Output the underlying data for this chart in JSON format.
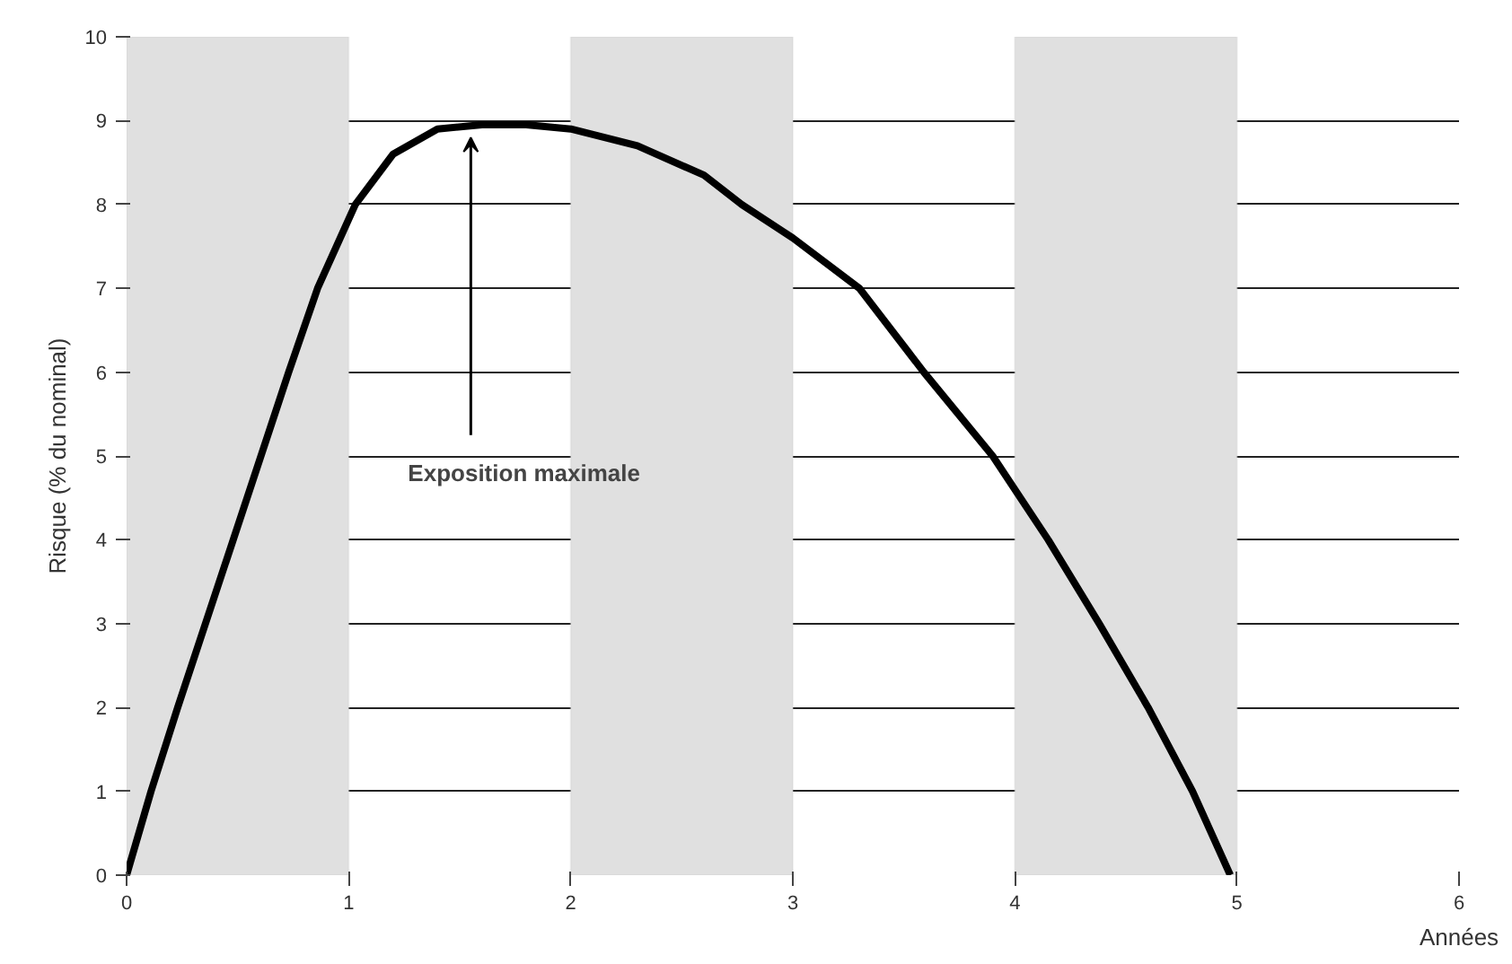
{
  "chart_data": {
    "type": "line",
    "xlabel": "Années",
    "ylabel": "Risque (% du nominal)",
    "x": [
      0,
      0.11,
      0.23,
      0.48,
      0.73,
      0.86,
      1.03,
      1.2,
      1.4,
      1.6,
      1.8,
      2.0,
      2.3,
      2.6,
      2.77,
      3.0,
      3.3,
      3.59,
      3.9,
      4.15,
      4.38,
      4.6,
      4.8,
      4.97
    ],
    "series": [
      {
        "color": "#000000",
        "values": [
          0,
          1,
          2,
          4,
          6,
          7,
          8,
          8.6,
          8.9,
          8.95,
          8.95,
          8.9,
          8.7,
          8.35,
          8,
          7.6,
          7,
          6,
          5,
          4,
          3,
          2,
          1,
          0
        ]
      }
    ],
    "xlim": [
      0,
      6
    ],
    "ylim": [
      0,
      10
    ],
    "xticks": [
      0,
      1,
      2,
      3,
      4,
      5,
      6
    ],
    "yticks": [
      0,
      1,
      2,
      3,
      4,
      5,
      6,
      7,
      8,
      9,
      10
    ],
    "grid": "y",
    "marker": "none",
    "line_style": "solid",
    "bands": [
      {
        "axis": "x",
        "from": 0,
        "to": 1,
        "color": "#e0e0e0"
      },
      {
        "axis": "x",
        "from": 2,
        "to": 3,
        "color": "#e0e0e0"
      },
      {
        "axis": "x",
        "from": 4,
        "to": 5,
        "color": "#e0e0e0"
      }
    ],
    "annotations": [
      {
        "text": "Exposition maximale",
        "x": 1.55,
        "y": 8.8
      }
    ]
  }
}
